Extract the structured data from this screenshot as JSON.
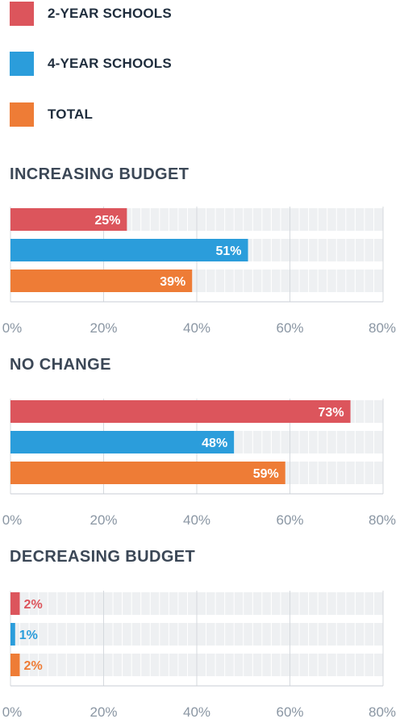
{
  "legend": [
    {
      "label": "2-YEAR SCHOOLS",
      "color": "#dc555c"
    },
    {
      "label": "4-YEAR SCHOOLS",
      "color": "#2b9ddb"
    },
    {
      "label": "TOTAL",
      "color": "#ee7c36"
    }
  ],
  "colors": {
    "track": "#eef0f2",
    "grid": "#ffffff",
    "axis": "#c9ced4",
    "tick_label": "#8a96a3"
  },
  "chart_data": [
    {
      "type": "bar",
      "orientation": "horizontal",
      "title": "INCREASING BUDGET",
      "categories": [
        "2-YEAR SCHOOLS",
        "4-YEAR SCHOOLS",
        "TOTAL"
      ],
      "values": [
        25,
        51,
        39
      ],
      "value_labels": [
        "25%",
        "51%",
        "39%"
      ],
      "xlim": [
        0,
        80
      ],
      "xticks": [
        "0%",
        "20%",
        "40%",
        "60%",
        "80%"
      ]
    },
    {
      "type": "bar",
      "orientation": "horizontal",
      "title": "NO CHANGE",
      "categories": [
        "2-YEAR SCHOOLS",
        "4-YEAR SCHOOLS",
        "TOTAL"
      ],
      "values": [
        73,
        48,
        59
      ],
      "value_labels": [
        "73%",
        "48%",
        "59%"
      ],
      "xlim": [
        0,
        80
      ],
      "xticks": [
        "0%",
        "20%",
        "40%",
        "60%",
        "80%"
      ]
    },
    {
      "type": "bar",
      "orientation": "horizontal",
      "title": "DECREASING BUDGET",
      "categories": [
        "2-YEAR SCHOOLS",
        "4-YEAR SCHOOLS",
        "TOTAL"
      ],
      "values": [
        2,
        1,
        2
      ],
      "value_labels": [
        "2%",
        "1%",
        "2%"
      ],
      "xlim": [
        0,
        80
      ],
      "xticks": [
        "0%",
        "20%",
        "40%",
        "60%",
        "80%"
      ]
    }
  ]
}
